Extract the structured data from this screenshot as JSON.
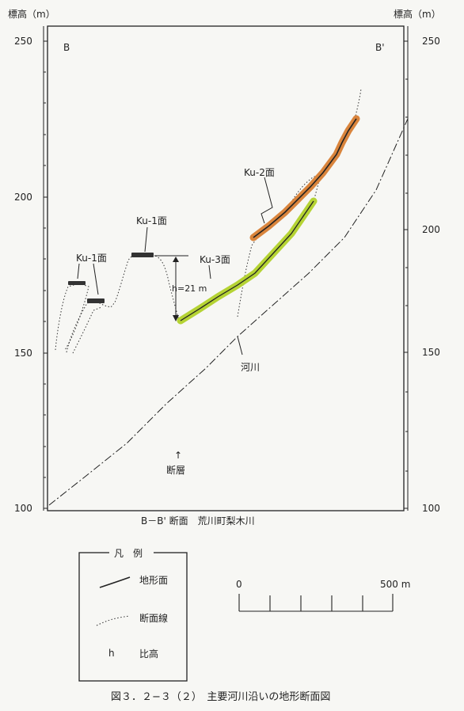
{
  "figure": {
    "y_axis_label_left": "標高（m）",
    "y_axis_label_right": "標高（m）",
    "tick_labels": [
      "250",
      "200",
      "150",
      "100"
    ],
    "corner_left": "B",
    "corner_right": "B'",
    "section_title": "B－B' 断面　荒川町梨木川",
    "caption": "図３．２−３（２）　主要河川沿いの地形断面図"
  },
  "annotations": {
    "ku1_left": "Ku-1面",
    "ku1_center": "Ku-1面",
    "ku2": "Ku-2面",
    "ku3": "Ku-3面",
    "height_label": "h=21 m",
    "river": "河川",
    "fault_arrow": "↑",
    "fault": "断層"
  },
  "legend": {
    "title": "凡　例",
    "items": [
      {
        "symbol": "solid-line",
        "label": "地形面"
      },
      {
        "symbol": "dotted-line",
        "label": "断面線"
      },
      {
        "symbol": "h",
        "label": "比高"
      }
    ]
  },
  "scale_bar": {
    "start": "0",
    "end": "500 m"
  },
  "colors": {
    "ku2_highlight": "#d9843c",
    "ku3_highlight": "#b5d334",
    "line": "#222222"
  }
}
